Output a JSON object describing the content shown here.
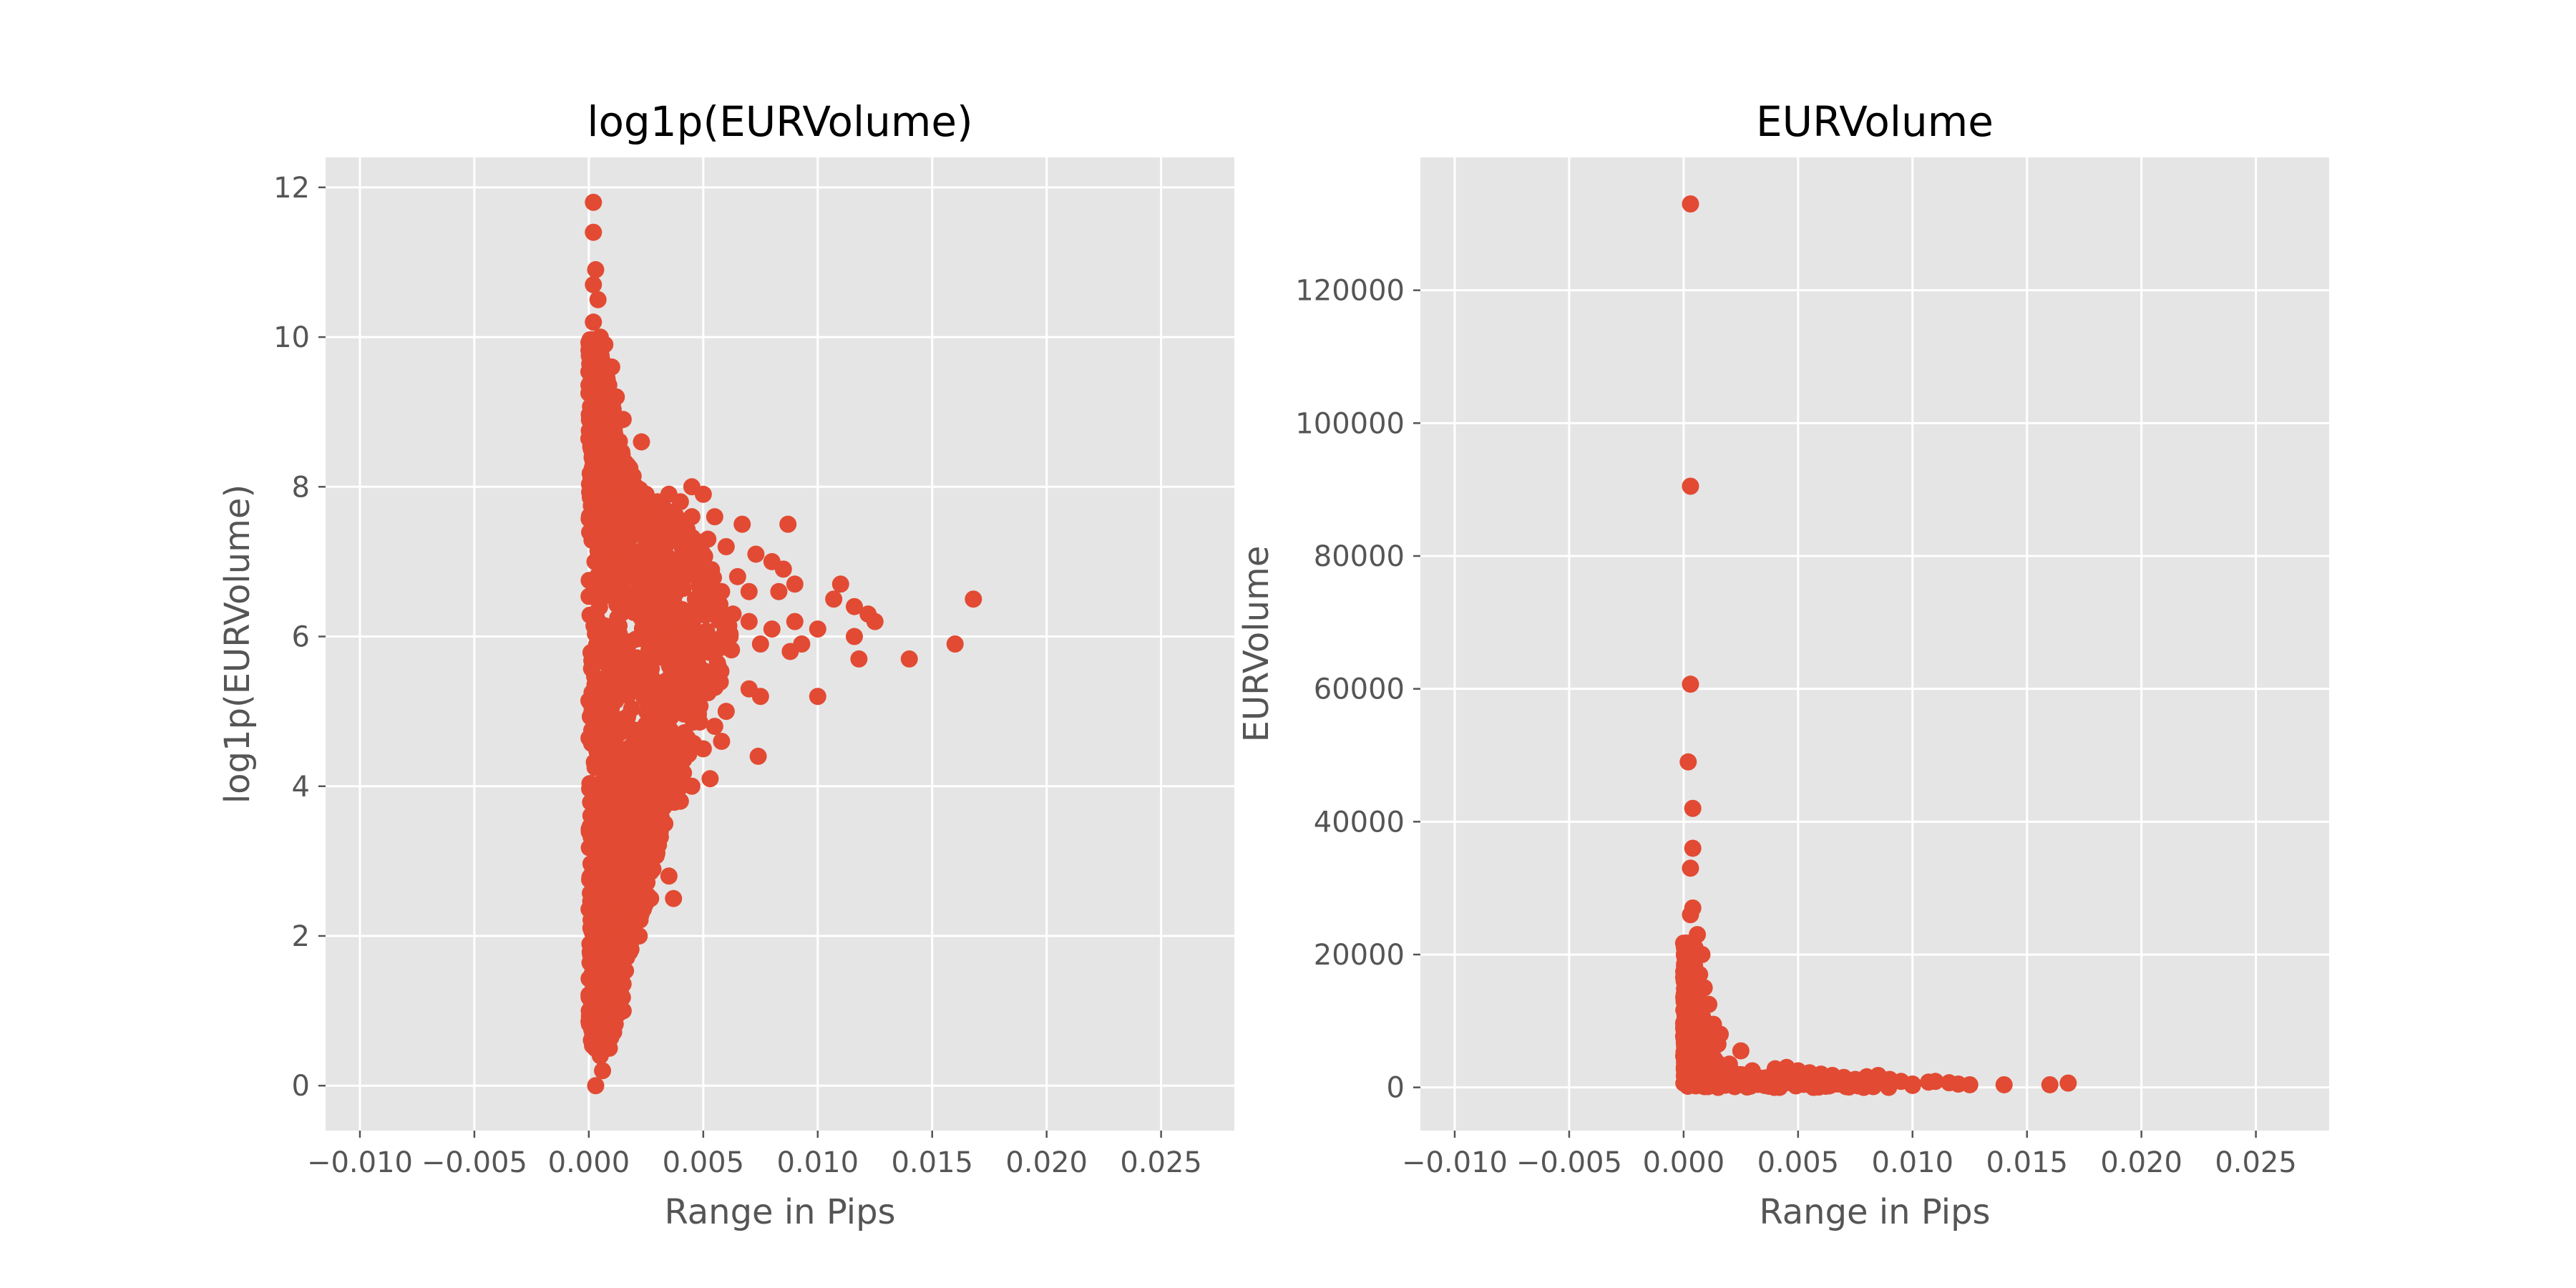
{
  "colors": {
    "background": "#ffffff",
    "axes_face": "#e5e5e5",
    "grid": "#ffffff",
    "marker": "#e24a33",
    "text": "#555555",
    "title": "#000000"
  },
  "chart_data": [
    {
      "type": "scatter",
      "title": "log1p(EURVolume)",
      "xlabel": "Range in Pips",
      "ylabel": "log1p(EURVolume)",
      "xlim": [
        -0.0115,
        0.0282
      ],
      "ylim": [
        -0.6,
        12.4
      ],
      "grid": true,
      "xticks": [
        -0.01,
        -0.005,
        0.0,
        0.005,
        0.01,
        0.015,
        0.02,
        0.025
      ],
      "xtick_labels": [
        "−0.010",
        "−0.005",
        "0.000",
        "0.005",
        "0.010",
        "0.015",
        "0.020",
        "0.025"
      ],
      "yticks": [
        0,
        2,
        4,
        6,
        8,
        10,
        12
      ],
      "ytick_labels": [
        "0",
        "2",
        "4",
        "6",
        "8",
        "10",
        "12"
      ],
      "series": [
        {
          "color": "#e24a33",
          "points": [
            [
              0.0002,
              11.8
            ],
            [
              0.0002,
              11.4
            ],
            [
              0.0003,
              10.9
            ],
            [
              0.0002,
              10.7
            ],
            [
              0.0004,
              10.5
            ],
            [
              0.0002,
              10.2
            ],
            [
              0.0005,
              10.0
            ],
            [
              0.0003,
              9.9
            ],
            [
              0.0007,
              9.9
            ],
            [
              0.001,
              9.6
            ],
            [
              0.0012,
              9.2
            ],
            [
              0.0015,
              8.9
            ],
            [
              0.0023,
              8.6
            ],
            [
              0.002,
              7.9
            ],
            [
              0.0025,
              7.9
            ],
            [
              0.003,
              7.8
            ],
            [
              0.0035,
              7.9
            ],
            [
              0.004,
              7.8
            ],
            [
              0.0045,
              8.0
            ],
            [
              0.005,
              7.9
            ],
            [
              0.0045,
              7.6
            ],
            [
              0.0055,
              7.6
            ],
            [
              0.006,
              7.2
            ],
            [
              0.0067,
              7.5
            ],
            [
              0.0073,
              7.1
            ],
            [
              0.008,
              7.0
            ],
            [
              0.0087,
              7.5
            ],
            [
              0.0085,
              6.9
            ],
            [
              0.0065,
              6.8
            ],
            [
              0.007,
              6.6
            ],
            [
              0.0083,
              6.6
            ],
            [
              0.009,
              6.7
            ],
            [
              0.01,
              6.1
            ],
            [
              0.009,
              6.2
            ],
            [
              0.0093,
              5.9
            ],
            [
              0.0088,
              5.8
            ],
            [
              0.008,
              6.1
            ],
            [
              0.0075,
              5.9
            ],
            [
              0.007,
              6.2
            ],
            [
              0.0107,
              6.5
            ],
            [
              0.011,
              6.7
            ],
            [
              0.0116,
              6.4
            ],
            [
              0.0122,
              6.3
            ],
            [
              0.0125,
              6.2
            ],
            [
              0.0116,
              6.0
            ],
            [
              0.0118,
              5.7
            ],
            [
              0.01,
              5.2
            ],
            [
              0.0075,
              5.2
            ],
            [
              0.007,
              5.3
            ],
            [
              0.006,
              5.0
            ],
            [
              0.0055,
              4.8
            ],
            [
              0.0058,
              4.6
            ],
            [
              0.0074,
              4.4
            ],
            [
              0.005,
              4.5
            ],
            [
              0.0053,
              4.1
            ],
            [
              0.0045,
              4.0
            ],
            [
              0.004,
              3.8
            ],
            [
              0.0033,
              3.5
            ],
            [
              0.0035,
              2.8
            ],
            [
              0.0037,
              2.5
            ],
            [
              0.0027,
              2.5
            ],
            [
              0.0022,
              2.0
            ],
            [
              0.002,
              3.0
            ],
            [
              0.0015,
              1.7
            ],
            [
              0.0013,
              1.3
            ],
            [
              0.0015,
              1.0
            ],
            [
              0.0008,
              0.6
            ],
            [
              0.0005,
              0.4
            ],
            [
              0.0003,
              0.0
            ],
            [
              0.014,
              5.7
            ],
            [
              0.016,
              5.9
            ],
            [
              0.0168,
              6.5
            ],
            [
              0.0047,
              7.0
            ],
            [
              0.0052,
              7.3
            ],
            [
              0.0058,
              6.6
            ],
            [
              0.0063,
              6.3
            ],
            [
              0.005,
              6.0
            ],
            [
              0.0043,
              5.6
            ],
            [
              0.0038,
              6.4
            ],
            [
              0.0033,
              5.3
            ],
            [
              0.0028,
              6.9
            ],
            [
              0.0026,
              4.6
            ],
            [
              0.003,
              4.2
            ],
            [
              0.0024,
              3.6
            ],
            [
              0.0018,
              2.6
            ],
            [
              0.0012,
              2.2
            ],
            [
              0.001,
              1.6
            ],
            [
              0.0009,
              0.9
            ],
            [
              0.0006,
              0.2
            ]
          ],
          "dense_band": [
            {
              "y": 0.5,
              "x_max": 0.0009
            },
            {
              "y": 1.0,
              "x_max": 0.0014
            },
            {
              "y": 1.5,
              "x_max": 0.0016
            },
            {
              "y": 2.0,
              "x_max": 0.002
            },
            {
              "y": 2.5,
              "x_max": 0.0026
            },
            {
              "y": 3.0,
              "x_max": 0.003
            },
            {
              "y": 3.5,
              "x_max": 0.0034
            },
            {
              "y": 4.0,
              "x_max": 0.004
            },
            {
              "y": 4.5,
              "x_max": 0.0046
            },
            {
              "y": 5.0,
              "x_max": 0.0054
            },
            {
              "y": 5.5,
              "x_max": 0.006
            },
            {
              "y": 6.0,
              "x_max": 0.0064
            },
            {
              "y": 6.5,
              "x_max": 0.006
            },
            {
              "y": 7.0,
              "x_max": 0.0054
            },
            {
              "y": 7.5,
              "x_max": 0.0044
            },
            {
              "y": 8.0,
              "x_max": 0.0022
            },
            {
              "y": 8.5,
              "x_max": 0.0014
            },
            {
              "y": 9.0,
              "x_max": 0.0011
            },
            {
              "y": 9.5,
              "x_max": 0.0008
            },
            {
              "y": 10.0,
              "x_max": 0.0004
            }
          ]
        }
      ]
    },
    {
      "type": "scatter",
      "title": "EURVolume",
      "xlabel": "Range in Pips",
      "ylabel": "EURVolume",
      "xlim": [
        -0.0115,
        0.0282
      ],
      "ylim": [
        -6500,
        140000
      ],
      "grid": true,
      "xticks": [
        -0.01,
        -0.005,
        0.0,
        0.005,
        0.01,
        0.015,
        0.02,
        0.025
      ],
      "xtick_labels": [
        "−0.010",
        "−0.005",
        "0.000",
        "0.005",
        "0.010",
        "0.015",
        "0.020",
        "0.025"
      ],
      "yticks": [
        0,
        20000,
        40000,
        60000,
        80000,
        100000,
        120000
      ],
      "ytick_labels": [
        "0",
        "20000",
        "40000",
        "60000",
        "80000",
        "100000",
        "120000"
      ],
      "series": [
        {
          "color": "#e24a33",
          "points": [
            [
              0.0003,
              133000
            ],
            [
              0.0003,
              90500
            ],
            [
              0.0003,
              60700
            ],
            [
              0.0002,
              49000
            ],
            [
              0.0004,
              42000
            ],
            [
              0.0004,
              36000
            ],
            [
              0.0003,
              33000
            ],
            [
              0.0004,
              27000
            ],
            [
              0.0003,
              26000
            ],
            [
              0.0006,
              23000
            ],
            [
              0.0005,
              21000
            ],
            [
              0.0008,
              20000
            ],
            [
              0.0007,
              17000
            ],
            [
              0.0009,
              15000
            ],
            [
              0.0011,
              12500
            ],
            [
              0.0013,
              9500
            ],
            [
              0.0016,
              8000
            ],
            [
              0.0015,
              6500
            ],
            [
              0.0025,
              5500
            ],
            [
              0.0012,
              5000
            ],
            [
              0.002,
              3500
            ],
            [
              0.003,
              2500
            ],
            [
              0.004,
              2800
            ],
            [
              0.0045,
              3000
            ],
            [
              0.005,
              2500
            ],
            [
              0.0055,
              2200
            ],
            [
              0.006,
              2000
            ],
            [
              0.0065,
              1800
            ],
            [
              0.007,
              1500
            ],
            [
              0.0075,
              1200
            ],
            [
              0.008,
              1600
            ],
            [
              0.0085,
              1800
            ],
            [
              0.009,
              1200
            ],
            [
              0.0095,
              900
            ],
            [
              0.01,
              500
            ],
            [
              0.0107,
              800
            ],
            [
              0.011,
              900
            ],
            [
              0.0116,
              700
            ],
            [
              0.012,
              500
            ],
            [
              0.0125,
              400
            ],
            [
              0.014,
              400
            ],
            [
              0.016,
              400
            ],
            [
              0.0168,
              650
            ],
            [
              0.0035,
              1000
            ],
            [
              0.0055,
              800
            ],
            [
              0.007,
              600
            ],
            [
              0.0087,
              900
            ],
            [
              0.01,
              300
            ]
          ],
          "dense_band": [
            {
              "y": 0,
              "x_max": 0.009
            },
            {
              "y": 800,
              "x_max": 0.006
            },
            {
              "y": 1600,
              "x_max": 0.003
            },
            {
              "y": 2500,
              "x_max": 0.0018
            },
            {
              "y": 4000,
              "x_max": 0.0014
            },
            {
              "y": 6000,
              "x_max": 0.0012
            },
            {
              "y": 8000,
              "x_max": 0.001
            },
            {
              "y": 11000,
              "x_max": 0.0008
            },
            {
              "y": 14000,
              "x_max": 0.0006
            },
            {
              "y": 18000,
              "x_max": 0.0005
            },
            {
              "y": 22000,
              "x_max": 0.0004
            }
          ]
        }
      ]
    }
  ]
}
